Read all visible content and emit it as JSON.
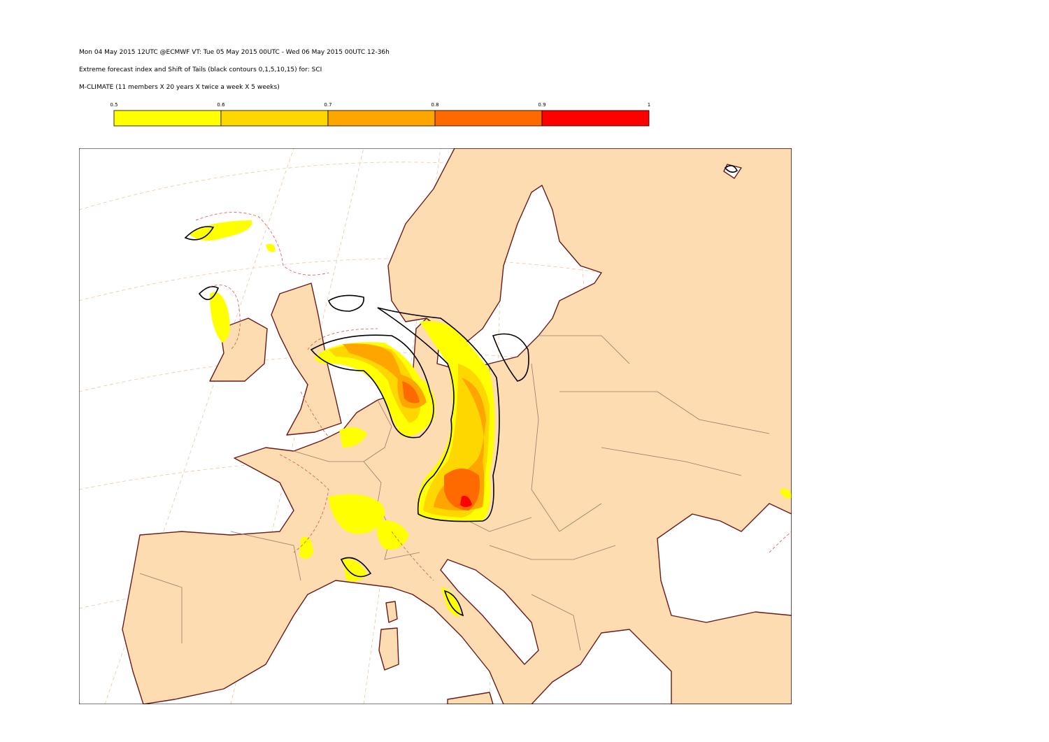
{
  "header": {
    "lines": [
      "Mon 04 May 2015 12UTC @ECMWF VT: Tue 05 May 2015 00UTC - Wed 06 May 2015 00UTC  12-36h",
      "Extreme forecast index and Shift of Tails (black contours 0,1,5,10,15) for: SCI",
      "M-CLIMATE (11 members X 20 years X twice a week X 5 weeks)"
    ]
  },
  "legend": {
    "ticks": [
      0.5,
      0.6,
      0.7,
      0.8,
      0.9,
      1
    ],
    "colors": [
      "#ffff00",
      "#ffd700",
      "#ffa500",
      "#ff6a00",
      "#ff0000"
    ]
  }
}
